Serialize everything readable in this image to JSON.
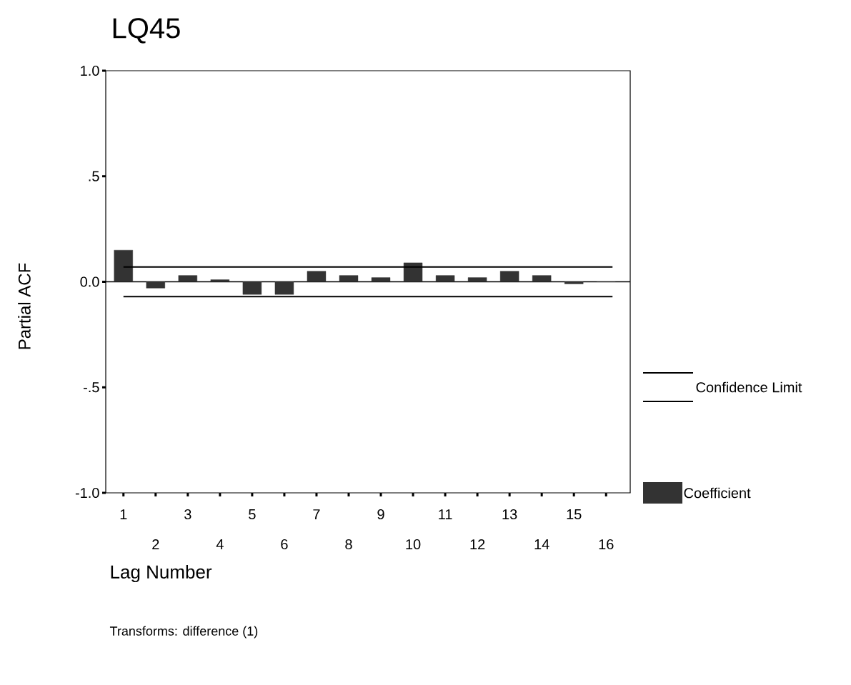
{
  "chart_data": {
    "type": "bar",
    "title": "LQ45",
    "xlabel": "Lag Number",
    "ylabel": "Partial ACF",
    "categories": [
      "1",
      "2",
      "3",
      "4",
      "5",
      "6",
      "7",
      "8",
      "9",
      "10",
      "11",
      "12",
      "13",
      "14",
      "15",
      "16"
    ],
    "series": [
      {
        "name": "Coefficient",
        "color": "#333333",
        "values": [
          0.15,
          -0.03,
          0.03,
          0.01,
          -0.06,
          -0.06,
          0.05,
          0.03,
          0.02,
          0.09,
          0.03,
          0.02,
          0.05,
          0.03,
          -0.01,
          0
        ]
      }
    ],
    "ylim": [
      -1,
      1
    ],
    "yticks": [
      {
        "value": -1,
        "label": "-1.0"
      },
      {
        "value": -0.5,
        "label": "-.5"
      },
      {
        "value": 0,
        "label": "0.0"
      },
      {
        "value": 0.5,
        "label": ".5"
      },
      {
        "value": 1,
        "label": "1.0"
      }
    ],
    "ref_lines": [
      {
        "axis": "y",
        "value": 0.07,
        "label": "Confidence Limit",
        "color": "#000000"
      },
      {
        "axis": "y",
        "value": -0.07,
        "color": "#000000"
      }
    ],
    "legend": "right",
    "annotations": [
      "Transforms: difference (1)"
    ]
  }
}
